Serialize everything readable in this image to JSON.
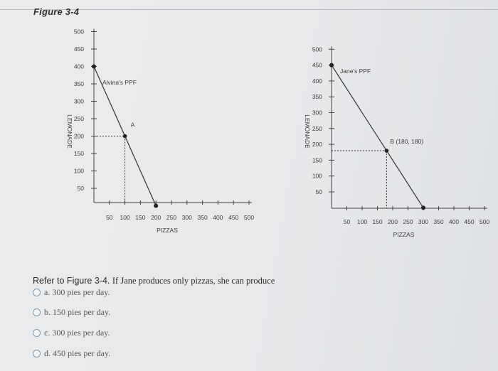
{
  "figure_title": "Figure 3-4",
  "question": {
    "ref": "Refer to Figure 3-4.",
    "text": "If Jane produces only pizzas, she can produce"
  },
  "options": [
    {
      "label": "a. 300 pies per day."
    },
    {
      "label": "b. 150 pies per day."
    },
    {
      "label": "c. 300 pies per day."
    },
    {
      "label": "d. 450 pies per day."
    }
  ],
  "chart_data": [
    {
      "type": "line",
      "title": "",
      "xlabel": "PIZZAS",
      "ylabel": "LEMONADE",
      "xlim": [
        0,
        500
      ],
      "ylim": [
        0,
        500
      ],
      "x_ticks": [
        50,
        100,
        150,
        200,
        250,
        300,
        350,
        400,
        450,
        500
      ],
      "y_ticks": [
        50,
        100,
        150,
        200,
        250,
        300,
        350,
        400,
        450,
        500
      ],
      "series": [
        {
          "name": "Alvina's PPF",
          "points": [
            [
              0,
              400
            ],
            [
              200,
              0
            ]
          ]
        }
      ],
      "annotations": [
        {
          "label": "A",
          "x": 100,
          "y": 200
        }
      ],
      "color": "#333333"
    },
    {
      "type": "line",
      "title": "",
      "xlabel": "PIZZAS",
      "ylabel": "LEMONADE",
      "xlim": [
        0,
        500
      ],
      "ylim": [
        0,
        500
      ],
      "x_ticks": [
        50,
        100,
        150,
        200,
        250,
        300,
        350,
        400,
        450,
        500
      ],
      "y_ticks": [
        50,
        100,
        150,
        200,
        250,
        300,
        350,
        400,
        450,
        500
      ],
      "series": [
        {
          "name": "Jane's PPF",
          "points": [
            [
              0,
              450
            ],
            [
              300,
              0
            ]
          ]
        }
      ],
      "annotations": [
        {
          "label": "B (180, 180)",
          "x": 180,
          "y": 180
        }
      ],
      "color": "#333333"
    }
  ]
}
